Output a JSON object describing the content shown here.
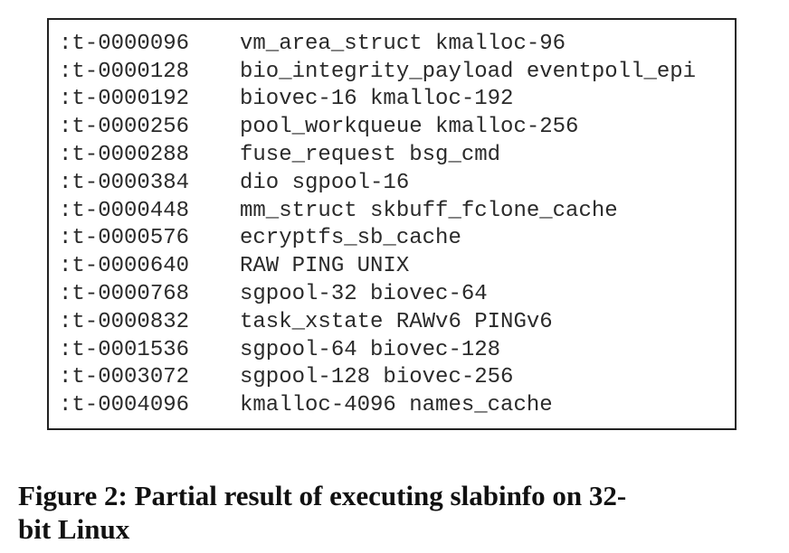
{
  "listing": {
    "rows": [
      {
        "id": ":t-0000096",
        "caches": "vm_area_struct kmalloc-96"
      },
      {
        "id": ":t-0000128",
        "caches": "bio_integrity_payload eventpoll_epi"
      },
      {
        "id": ":t-0000192",
        "caches": "biovec-16 kmalloc-192"
      },
      {
        "id": ":t-0000256",
        "caches": "pool_workqueue kmalloc-256"
      },
      {
        "id": ":t-0000288",
        "caches": "fuse_request bsg_cmd"
      },
      {
        "id": ":t-0000384",
        "caches": "dio sgpool-16"
      },
      {
        "id": ":t-0000448",
        "caches": "mm_struct skbuff_fclone_cache"
      },
      {
        "id": ":t-0000576",
        "caches": "ecryptfs_sb_cache"
      },
      {
        "id": ":t-0000640",
        "caches": "RAW PING UNIX"
      },
      {
        "id": ":t-0000768",
        "caches": "sgpool-32 biovec-64"
      },
      {
        "id": ":t-0000832",
        "caches": "task_xstate RAWv6 PINGv6"
      },
      {
        "id": ":t-0001536",
        "caches": "sgpool-64 biovec-128"
      },
      {
        "id": ":t-0003072",
        "caches": "sgpool-128 biovec-256"
      },
      {
        "id": ":t-0004096",
        "caches": "kmalloc-4096 names_cache"
      }
    ]
  },
  "caption": {
    "line1": "Figure 2: Partial result of executing slabinfo on 32-",
    "line2": "bit Linux"
  }
}
